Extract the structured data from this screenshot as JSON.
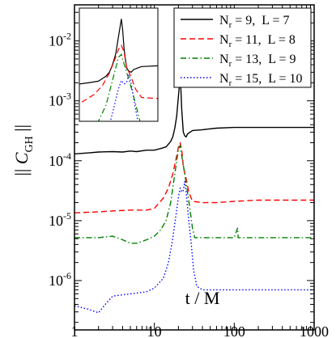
{
  "chart_data": {
    "type": "line",
    "xscale": "log",
    "yscale": "log",
    "xlim": [
      1,
      1000
    ],
    "ylim": [
      1.5e-07,
      0.04
    ],
    "x_ticks": [
      1,
      10,
      100,
      1000
    ],
    "x_tick_labels": [
      "1",
      "10",
      "100",
      "1000"
    ],
    "y_ticks": [
      1e-06,
      1e-05,
      0.0001,
      0.001,
      0.01
    ],
    "y_tick_labels": [
      "10-6",
      "10-5",
      "10-4",
      "10-3",
      "10-2"
    ],
    "xlabel": "t / M",
    "ylabel": "|| C_GH ||",
    "legend": {
      "placement": "top-right",
      "entries": [
        {
          "series": 0,
          "text": "N_r = 9,  L = 7"
        },
        {
          "series": 1,
          "text": "N_r = 11,  L = 8"
        },
        {
          "series": 2,
          "text": "N_r = 13,  L = 9"
        },
        {
          "series": 3,
          "text": "N_r = 15,  L = 10"
        }
      ]
    },
    "inset": {
      "placement": "top-left",
      "xlim": [
        10,
        40
      ],
      "ylim": [
        0.0003,
        0.04
      ]
    },
    "series": [
      {
        "name": "N_r = 9,  L = 7",
        "color": "#000000",
        "dash": "solid",
        "points": [
          [
            1,
            0.00013
          ],
          [
            1.5,
            0.000135
          ],
          [
            2,
            0.00014
          ],
          [
            3,
            0.000142
          ],
          [
            4,
            0.00014
          ],
          [
            5,
            0.000145
          ],
          [
            6,
            0.000142
          ],
          [
            8,
            0.00015
          ],
          [
            10,
            0.00015
          ],
          [
            12,
            0.00016
          ],
          [
            14,
            0.00017
          ],
          [
            16,
            0.00021
          ],
          [
            17,
            0.00025
          ],
          [
            18,
            0.00035
          ],
          [
            19,
            0.00055
          ],
          [
            20,
            0.0012
          ],
          [
            21,
            0.0025
          ],
          [
            21.5,
            0.0015
          ],
          [
            22,
            0.0007
          ],
          [
            23,
            0.0003
          ],
          [
            24,
            0.00026
          ],
          [
            25,
            0.00025
          ],
          [
            26,
            0.00028
          ],
          [
            28,
            0.0003
          ],
          [
            30,
            0.00032
          ],
          [
            40,
            0.00033
          ],
          [
            60,
            0.00035
          ],
          [
            100,
            0.00036
          ],
          [
            200,
            0.00036
          ],
          [
            500,
            0.00036
          ],
          [
            1000,
            0.00036
          ]
        ]
      },
      {
        "name": "N_r = 11,  L = 8",
        "color": "#ff0000",
        "dash": "dashed",
        "points": [
          [
            1,
            1.35e-05
          ],
          [
            2,
            1.4e-05
          ],
          [
            3,
            1.45e-05
          ],
          [
            5,
            1.5e-05
          ],
          [
            8,
            1.5e-05
          ],
          [
            10,
            1.6e-05
          ],
          [
            13,
            2.4e-05
          ],
          [
            15,
            3.5e-05
          ],
          [
            17,
            6e-05
          ],
          [
            19,
            0.00012
          ],
          [
            20,
            0.00017
          ],
          [
            21,
            0.0002
          ],
          [
            22,
            0.00015
          ],
          [
            23,
            8e-05
          ],
          [
            25,
            5e-05
          ],
          [
            27,
            3e-05
          ],
          [
            30,
            2.1e-05
          ],
          [
            40,
            2e-05
          ],
          [
            60,
            2e-05
          ],
          [
            100,
            2.1e-05
          ],
          [
            200,
            2.2e-05
          ],
          [
            1000,
            2.2e-05
          ]
        ]
      },
      {
        "name": "N_r = 13,  L = 9",
        "color": "#008000",
        "dash": "dashdot",
        "points": [
          [
            1,
            5.2e-06
          ],
          [
            2,
            5.2e-06
          ],
          [
            3,
            5.5e-06
          ],
          [
            4,
            4.8e-06
          ],
          [
            5,
            4.2e-06
          ],
          [
            6,
            4.2e-06
          ],
          [
            7,
            4.5e-06
          ],
          [
            8,
            4.8e-06
          ],
          [
            10,
            5.5e-06
          ],
          [
            12,
            7e-06
          ],
          [
            14,
            1e-05
          ],
          [
            16,
            2e-05
          ],
          [
            18,
            6e-05
          ],
          [
            20,
            0.00016
          ],
          [
            21,
            0.00018
          ],
          [
            22,
            0.00012
          ],
          [
            24,
            6e-05
          ],
          [
            26,
            3e-05
          ],
          [
            28,
            1.5e-05
          ],
          [
            30,
            7.5e-06
          ],
          [
            32,
            5.2e-06
          ],
          [
            40,
            5.2e-06
          ],
          [
            100,
            5.2e-06
          ],
          [
            110,
            7.5e-06
          ],
          [
            112,
            5.2e-06
          ],
          [
            200,
            5.2e-06
          ],
          [
            1000,
            5.2e-06
          ]
        ]
      },
      {
        "name": "N_r = 15,  L = 10",
        "color": "#0000ff",
        "dash": "dotted",
        "points": [
          [
            1,
            3.8e-07
          ],
          [
            1.5,
            3.3e-07
          ],
          [
            2,
            2.9e-07
          ],
          [
            2.5,
            4.2e-07
          ],
          [
            3,
            5.5e-07
          ],
          [
            5,
            6e-07
          ],
          [
            8,
            6.5e-07
          ],
          [
            10,
            7.5e-07
          ],
          [
            13,
            1.1e-06
          ],
          [
            15,
            2e-06
          ],
          [
            17,
            5e-06
          ],
          [
            19,
            1.5e-05
          ],
          [
            20,
            2.5e-05
          ],
          [
            21,
            3.5e-05
          ],
          [
            22,
            3e-05
          ],
          [
            23,
            3.2e-05
          ],
          [
            24,
            4.5e-05
          ],
          [
            25,
            3e-05
          ],
          [
            27,
            1e-05
          ],
          [
            29,
            4e-06
          ],
          [
            31,
            1.5e-06
          ],
          [
            34,
            8e-07
          ],
          [
            40,
            7e-07
          ],
          [
            100,
            7e-07
          ],
          [
            1000,
            7e-07
          ]
        ]
      }
    ]
  }
}
